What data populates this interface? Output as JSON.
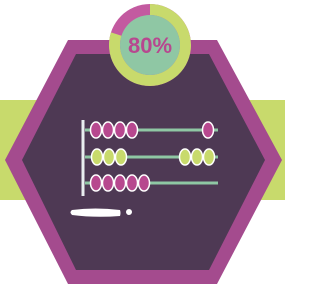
{
  "progress": {
    "value": 80,
    "label": "80%"
  }
}
